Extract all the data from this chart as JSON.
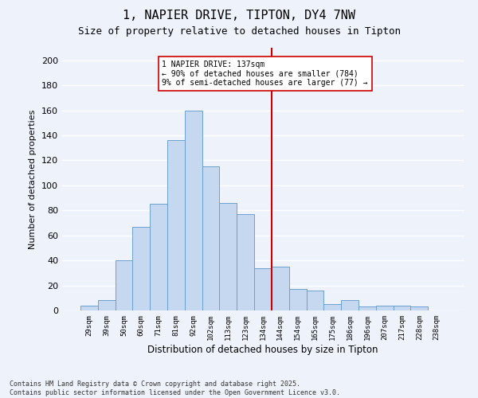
{
  "title": "1, NAPIER DRIVE, TIPTON, DY4 7NW",
  "subtitle": "Size of property relative to detached houses in Tipton",
  "xlabel": "Distribution of detached houses by size in Tipton",
  "ylabel": "Number of detached properties",
  "bins": [
    "29sqm",
    "39sqm",
    "50sqm",
    "60sqm",
    "71sqm",
    "81sqm",
    "92sqm",
    "102sqm",
    "113sqm",
    "123sqm",
    "134sqm",
    "144sqm",
    "154sqm",
    "165sqm",
    "175sqm",
    "186sqm",
    "196sqm",
    "207sqm",
    "217sqm",
    "228sqm",
    "238sqm"
  ],
  "values": [
    4,
    8,
    40,
    67,
    85,
    136,
    160,
    115,
    86,
    77,
    34,
    35,
    17,
    16,
    5,
    8,
    3,
    4,
    4,
    3,
    0
  ],
  "bar_color": "#c5d8f0",
  "bar_edge_color": "#6aa0d0",
  "vline_color": "#cc0000",
  "annotation_text": "1 NAPIER DRIVE: 137sqm\n← 90% of detached houses are smaller (784)\n9% of semi-detached houses are larger (77) →",
  "annotation_box_color": "#ffffff",
  "annotation_box_edge_color": "#cc0000",
  "ylim": [
    0,
    210
  ],
  "yticks": [
    0,
    20,
    40,
    60,
    80,
    100,
    120,
    140,
    160,
    180,
    200
  ],
  "bg_color": "#eef2fb",
  "grid_color": "#ffffff",
  "footer": "Contains HM Land Registry data © Crown copyright and database right 2025.\nContains public sector information licensed under the Open Government Licence v3.0."
}
